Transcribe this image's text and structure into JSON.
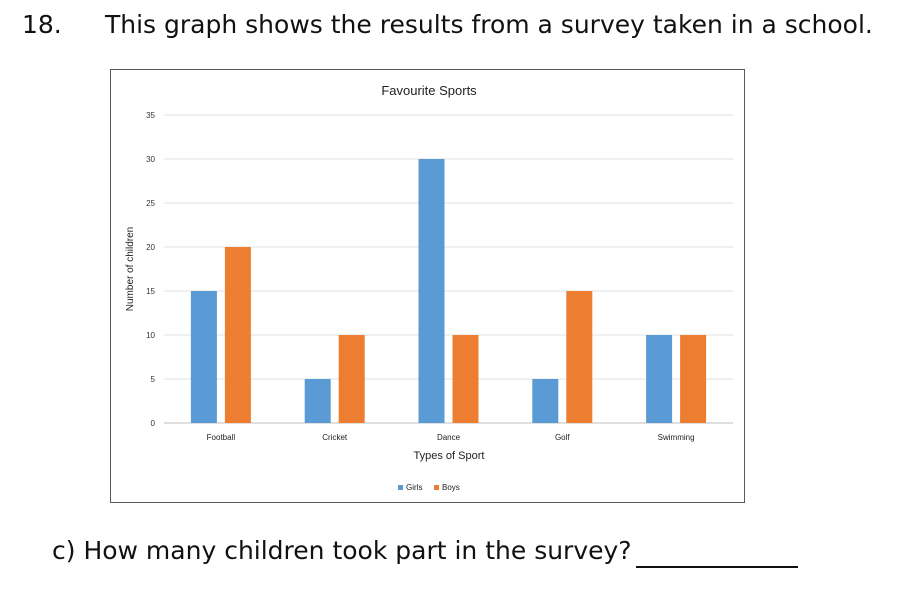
{
  "question": {
    "number": "18.",
    "text": "This graph shows the results from a survey taken in a school."
  },
  "part_c": {
    "text": "c) How many children took part in the survey?"
  },
  "colors": {
    "girls": "#5b9bd5",
    "boys": "#ed7d31",
    "gridline": "#e2e2e2",
    "axis": "#bfbfbf"
  },
  "chart_data": {
    "type": "bar",
    "title": "Favourite Sports",
    "xlabel": "Types of Sport",
    "ylabel": "Number of children",
    "categories": [
      "Football",
      "Cricket",
      "Dance",
      "Golf",
      "Swimming"
    ],
    "series": [
      {
        "name": "Girls",
        "values": [
          15,
          5,
          30,
          5,
          10
        ]
      },
      {
        "name": "Boys",
        "values": [
          20,
          10,
          10,
          15,
          10
        ]
      }
    ],
    "ylim": [
      0,
      35
    ],
    "yticks": [
      0,
      5,
      10,
      15,
      20,
      25,
      30,
      35
    ],
    "grid": true,
    "legend": "bottom"
  }
}
